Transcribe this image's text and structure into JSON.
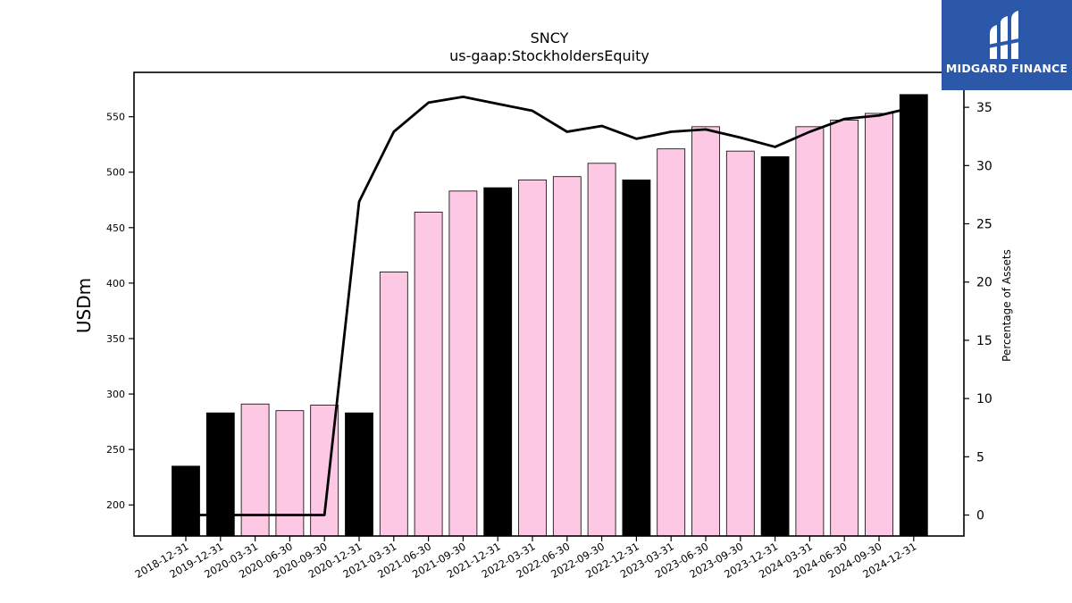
{
  "chart_data": {
    "type": "bar",
    "title": "SNCY",
    "subtitle": "us-gaap:StockholdersEquity",
    "ylabel": "USDm",
    "y2label": "Percentage of Assets",
    "ylim": [
      172,
      590
    ],
    "y2lim": [
      -1.8,
      38
    ],
    "yticks": [
      200,
      250,
      300,
      350,
      400,
      450,
      500,
      550
    ],
    "y2ticks": [
      0,
      5,
      10,
      15,
      20,
      25,
      30,
      35
    ],
    "categories": [
      "2018-12-31",
      "2019-12-31",
      "2020-03-31",
      "2020-06-30",
      "2020-09-30",
      "2020-12-31",
      "2021-03-31",
      "2021-06-30",
      "2021-09-30",
      "2021-12-31",
      "2022-03-31",
      "2022-06-30",
      "2022-09-30",
      "2022-12-31",
      "2023-03-31",
      "2023-06-30",
      "2023-09-30",
      "2023-12-31",
      "2024-03-31",
      "2024-06-30",
      "2024-09-30",
      "2024-12-31"
    ],
    "values": [
      235,
      283,
      291,
      285,
      290,
      283,
      410,
      464,
      483,
      486,
      493,
      496,
      508,
      493,
      521,
      541,
      519,
      514,
      541,
      547,
      553,
      570
    ],
    "bar_colors": [
      "#000000",
      "#000000",
      "#fcc8e4",
      "#fcc8e4",
      "#fcc8e4",
      "#000000",
      "#fcc8e4",
      "#fcc8e4",
      "#fcc8e4",
      "#000000",
      "#fcc8e4",
      "#fcc8e4",
      "#fcc8e4",
      "#000000",
      "#fcc8e4",
      "#fcc8e4",
      "#fcc8e4",
      "#000000",
      "#fcc8e4",
      "#fcc8e4",
      "#fcc8e4",
      "#000000"
    ],
    "line_values": [
      0,
      0,
      0,
      0,
      0,
      26.9,
      32.9,
      35.4,
      35.9,
      35.3,
      34.7,
      32.9,
      33.4,
      32.3,
      32.9,
      33.1,
      32.4,
      31.6,
      32.9,
      34.0,
      34.3,
      35.0
    ],
    "line_color": "#000000",
    "grid": false
  },
  "logo": {
    "text": "MIDGARD FINANCE",
    "background": "#2b58a8",
    "color": "#ffffff"
  }
}
